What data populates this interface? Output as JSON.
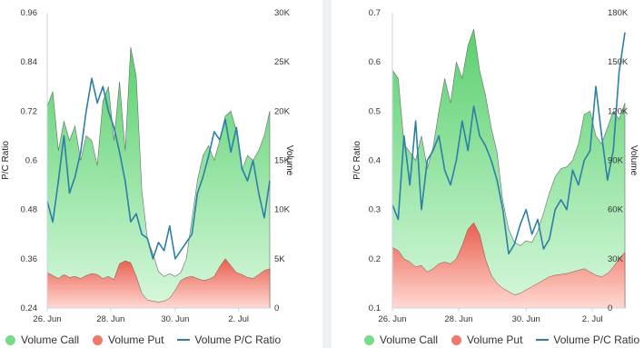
{
  "colors": {
    "call_top": "#5ad06e",
    "call_bottom": "#d7f8dc",
    "put_top": "#ea5f4f",
    "put_bottom": "#ffd9d2",
    "ratio_line": "#2b7fa8",
    "legend_call": "#76dc86",
    "legend_put": "#ef7a6b"
  },
  "legend": {
    "call": "Volume Call",
    "put": "Volume Put",
    "ratio": "Volume P/C Ratio"
  },
  "chart_data": [
    {
      "type": "area",
      "ylabel_left": "P/C Ratio",
      "ylabel_right": "Volume",
      "y_left": {
        "range": [
          0.24,
          0.96
        ],
        "ticks": [
          "0.24",
          "0.36",
          "0.48",
          "0.6",
          "0.72",
          "0.84",
          "0.96"
        ]
      },
      "y_right": {
        "range": [
          0,
          30000
        ],
        "ticks": [
          "0",
          "5K",
          "10K",
          "15K",
          "20K",
          "25K",
          "30K"
        ]
      },
      "x_ticks": [
        "26. Jun",
        "28. Jun",
        "30. Jun",
        "2. Jul"
      ],
      "x": [
        0,
        0.5,
        1,
        1.5,
        2,
        2.5,
        3,
        3.5,
        4,
        4.5,
        5,
        5.5,
        6,
        6.5,
        7,
        7.5,
        8,
        8.5,
        9,
        9.5,
        10,
        10.5,
        11,
        11.5,
        12,
        12.5,
        13,
        13.5,
        14,
        14.5,
        15,
        15.5,
        16,
        16.5,
        17,
        17.5,
        18,
        18.5,
        19,
        19.5,
        20
      ],
      "series": [
        {
          "name": "Volume Call",
          "axis": "right",
          "values": [
            20500,
            22000,
            16000,
            19000,
            17000,
            18500,
            15000,
            17500,
            17000,
            14500,
            21000,
            22500,
            17000,
            23000,
            16000,
            26500,
            23500,
            12000,
            7000,
            5500,
            3700,
            3200,
            3500,
            3200,
            3600,
            5000,
            9000,
            13000,
            15500,
            16500,
            15000,
            17000,
            19500,
            20000,
            18000,
            14000,
            15500,
            15000,
            16000,
            17500,
            20000
          ]
        },
        {
          "name": "Volume Put",
          "axis": "right",
          "values": [
            3600,
            3300,
            3000,
            3400,
            3100,
            3200,
            3000,
            3300,
            3500,
            3400,
            3000,
            3200,
            2900,
            4500,
            4800,
            4600,
            3200,
            1500,
            800,
            700,
            600,
            700,
            1000,
            1800,
            2800,
            3100,
            3200,
            3000,
            2800,
            2900,
            3200,
            4200,
            5000,
            4300,
            3600,
            3400,
            3100,
            3000,
            3400,
            3800,
            4000
          ]
        },
        {
          "name": "Volume P/C Ratio",
          "axis": "left",
          "values": [
            0.5,
            0.45,
            0.55,
            0.66,
            0.52,
            0.56,
            0.62,
            0.72,
            0.8,
            0.74,
            0.78,
            0.72,
            0.68,
            0.62,
            0.55,
            0.45,
            0.47,
            0.42,
            0.41,
            0.36,
            0.4,
            0.38,
            0.44,
            0.36,
            0.38,
            0.4,
            0.42,
            0.52,
            0.56,
            0.61,
            0.67,
            0.65,
            0.7,
            0.62,
            0.68,
            0.58,
            0.55,
            0.6,
            0.52,
            0.46,
            0.55
          ]
        }
      ]
    },
    {
      "type": "area",
      "ylabel_left": "P/C Ratio",
      "ylabel_right": "Volume",
      "y_left": {
        "range": [
          0.1,
          0.7
        ],
        "ticks": [
          "0.1",
          "0.2",
          "0.3",
          "0.4",
          "0.5",
          "0.6",
          "0.7"
        ]
      },
      "y_right": {
        "range": [
          0,
          180000
        ],
        "ticks": [
          "0",
          "30K",
          "60K",
          "90K",
          "120K",
          "150K",
          "180K"
        ]
      },
      "x_ticks": [
        "26. Jun",
        "28. Jun",
        "30. Jun",
        "2. Jul"
      ],
      "x": [
        0,
        0.5,
        1,
        1.5,
        2,
        2.5,
        3,
        3.5,
        4,
        4.5,
        5,
        5.5,
        6,
        6.5,
        7,
        7.5,
        8,
        8.5,
        9,
        9.5,
        10,
        10.5,
        11,
        11.5,
        12,
        12.5,
        13,
        13.5,
        14,
        14.5,
        15,
        15.5,
        16,
        16.5,
        17,
        17.5,
        18,
        18.5,
        19,
        19.5,
        20
      ],
      "series": [
        {
          "name": "Volume Call",
          "axis": "right",
          "values": [
            145000,
            140000,
            100000,
            95000,
            90000,
            105000,
            85000,
            98000,
            120000,
            140000,
            125000,
            150000,
            140000,
            160000,
            170000,
            145000,
            130000,
            110000,
            95000,
            65000,
            48000,
            40000,
            38000,
            41000,
            40000,
            47000,
            58000,
            70000,
            80000,
            85000,
            86000,
            90000,
            100000,
            118000,
            120000,
            105000,
            100000,
            110000,
            120000,
            115000,
            125000
          ]
        },
        {
          "name": "Volume Put",
          "axis": "right",
          "values": [
            37000,
            35000,
            30000,
            28000,
            25000,
            26000,
            22000,
            24000,
            27000,
            28000,
            27000,
            30000,
            38000,
            48000,
            52000,
            45000,
            30000,
            20000,
            15000,
            12000,
            10000,
            8000,
            9000,
            11000,
            13000,
            15000,
            17000,
            19000,
            20000,
            20500,
            21000,
            22000,
            23000,
            24000,
            22000,
            20000,
            19000,
            21000,
            25000,
            30000,
            34000
          ]
        },
        {
          "name": "Volume P/C Ratio",
          "axis": "left",
          "values": [
            0.31,
            0.28,
            0.45,
            0.35,
            0.48,
            0.3,
            0.4,
            0.42,
            0.45,
            0.38,
            0.35,
            0.4,
            0.48,
            0.42,
            0.51,
            0.45,
            0.43,
            0.4,
            0.36,
            0.3,
            0.21,
            0.23,
            0.27,
            0.3,
            0.25,
            0.28,
            0.22,
            0.24,
            0.3,
            0.32,
            0.3,
            0.38,
            0.35,
            0.4,
            0.42,
            0.55,
            0.45,
            0.36,
            0.42,
            0.58,
            0.66
          ]
        }
      ]
    }
  ]
}
